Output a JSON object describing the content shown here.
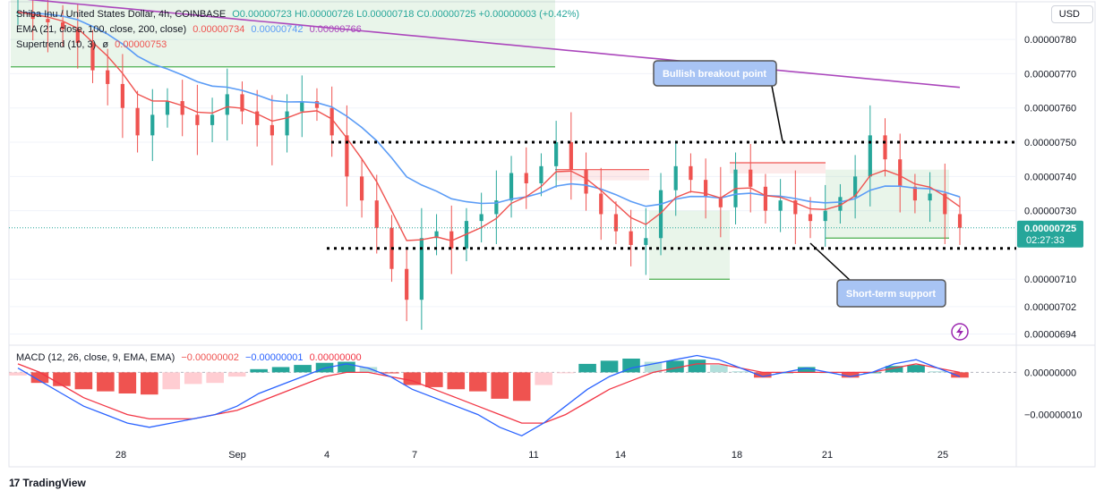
{
  "header": {
    "symbol": "Shiba Inu / United States Dollar, 4h, COINBASE",
    "ohlc": "O0.00000723 H0.00000726 L0.00000718 C0.00000725",
    "change": "+0.00000003 (+0.42%)",
    "ema_label": "EMA (21, close, 100, close, 200, close)",
    "ema21": "0.00000734",
    "ema100": "0.00000742",
    "ema200": "0.00000766",
    "supertrend_label": "Supertrend (10, 3)",
    "supertrend_value": "0.00000753",
    "macd_label": "MACD (12, 26, close, 9, EMA, EMA)",
    "macd_hist": "−0.00000002",
    "macd_line": "−0.00000001",
    "macd_signal": "0.00000000"
  },
  "currency_button": "USD",
  "brand": "TradingView",
  "colors": {
    "up": "#26a69a",
    "down": "#ef5350",
    "ema21": "#ef5350",
    "ema100": "#5b9cf6",
    "ema200": "#ab47bc",
    "st_up": "#4caf50",
    "st_down": "#ef5350",
    "macd": "#2962ff",
    "signal": "#f23645"
  },
  "chart_data": {
    "type": "candlestick",
    "price_axis": {
      "ticks": [
        "0.00000780",
        "0.00000770",
        "0.00000760",
        "0.00000750",
        "0.00000740",
        "0.00000730",
        "0.00000710",
        "0.00000702",
        "0.00000694"
      ],
      "range": [
        6.91e-06,
        7.91e-06
      ]
    },
    "macd_axis": {
      "ticks": [
        "0.00000000",
        "−0.00000010"
      ],
      "range": [
        -1.6e-07,
        6e-08
      ]
    },
    "x_ticks": [
      "28",
      "Sep",
      "4",
      "7",
      "11",
      "14",
      "18",
      "21",
      "25"
    ],
    "current_price": {
      "value": "0.00000725",
      "countdown": "02:27:33"
    },
    "annotations": [
      {
        "text": "Bullish breakout point",
        "level": 7.5e-06
      },
      {
        "text": "Short-term support",
        "level": 7.19e-06
      }
    ],
    "resistance_level": 7.5e-06,
    "support_level": 7.19e-06,
    "price_path": [
      7.88e-06,
      7.86e-06,
      7.85e-06,
      7.83e-06,
      7.79e-06,
      7.71e-06,
      7.67e-06,
      7.6e-06,
      7.52e-06,
      7.58e-06,
      7.62e-06,
      7.58e-06,
      7.55e-06,
      7.58e-06,
      7.64e-06,
      7.59e-06,
      7.55e-06,
      7.52e-06,
      7.59e-06,
      7.62e-06,
      7.6e-06,
      7.52e-06,
      7.4e-06,
      7.33e-06,
      7.25e-06,
      7.13e-06,
      7.04e-06,
      7.22e-06,
      7.24e-06,
      7.19e-06,
      7.27e-06,
      7.29e-06,
      7.33e-06,
      7.41e-06,
      7.38e-06,
      7.43e-06,
      7.5e-06,
      7.42e-06,
      7.35e-06,
      7.29e-06,
      7.24e-06,
      7.2e-06,
      7.22e-06,
      7.36e-06,
      7.43e-06,
      7.39e-06,
      7.34e-06,
      7.31e-06,
      7.42e-06,
      7.37e-06,
      7.3e-06,
      7.33e-06,
      7.29e-06,
      7.27e-06,
      7.3e-06,
      7.34e-06,
      7.4e-06,
      7.52e-06,
      7.45e-06,
      7.37e-06,
      7.33e-06,
      7.35e-06,
      7.29e-06,
      7.25e-06
    ],
    "macd_path": [
      1e-08,
      -2e-08,
      -5e-08,
      -8e-08,
      -1e-07,
      -1.2e-07,
      -1.3e-07,
      -1.2e-07,
      -1.1e-07,
      -1e-07,
      -8e-08,
      -5e-08,
      -3e-08,
      -1e-08,
      1e-08,
      2e-08,
      1e-08,
      -1e-08,
      -4e-08,
      -6e-08,
      -8e-08,
      -1e-07,
      -1.3e-07,
      -1.5e-07,
      -1.2e-07,
      -8e-08,
      -4e-08,
      -1e-08,
      1e-08,
      2e-08,
      3e-08,
      4e-08,
      3e-08,
      1e-08,
      -1e-08,
      0.0,
      1e-08,
      0.0,
      -1e-08,
      0.0,
      2e-08,
      3e-08,
      1e-08,
      -1e-08
    ],
    "signal_path": [
      2e-08,
      0.0,
      -3e-08,
      -6e-08,
      -8e-08,
      -1e-07,
      -1.1e-07,
      -1.1e-07,
      -1.1e-07,
      -1e-07,
      -9e-08,
      -7e-08,
      -5e-08,
      -3e-08,
      -1e-08,
      0.0,
      0.0,
      -1e-08,
      -2e-08,
      -4e-08,
      -6e-08,
      -8e-08,
      -1e-07,
      -1.2e-07,
      -1.2e-07,
      -1e-07,
      -7e-08,
      -4e-08,
      -2e-08,
      0.0,
      1e-08,
      2e-08,
      2e-08,
      1e-08,
      0.0,
      0.0,
      0.0,
      0.0,
      0.0,
      0.0,
      1e-08,
      2e-08,
      1e-08,
      0.0
    ]
  }
}
